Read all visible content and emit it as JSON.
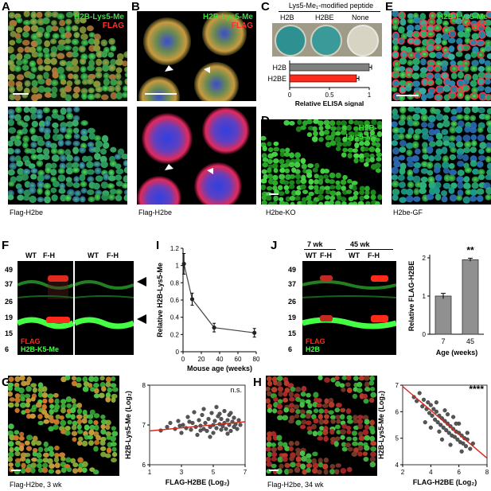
{
  "panels": {
    "A": {
      "label": "A",
      "overlay_green": "H2B-Lys5-Me",
      "overlay_red": "FLAG",
      "caption": "Flag-H2be"
    },
    "B": {
      "label": "B",
      "overlay_green": "H2B-Lys5-Me",
      "overlay_red": "FLAG",
      "caption": "Flag-H2be"
    },
    "C": {
      "label": "C",
      "title": "Lys5-Me₁-modified peptide",
      "wells": [
        "H2B",
        "H2BE",
        "None"
      ],
      "xlabel": "Relative ELISA signal"
    },
    "D": {
      "label": "D",
      "overlay_line1": "H2B-",
      "overlay_line2": "Lys5-Me",
      "caption": "H2be-KO"
    },
    "E": {
      "label": "E",
      "overlay_green": "H2B-Lys5-Me",
      "overlay_red": "FLAG",
      "caption": "H2be-GF"
    },
    "F": {
      "label": "F",
      "lanes": [
        "WT",
        "F-H",
        "WT",
        "F-H"
      ],
      "markers": [
        "49",
        "37",
        "26",
        "19",
        "15",
        "6"
      ],
      "legend_red": "FLAG",
      "legend_green": "H2B-K5-Me"
    },
    "I": {
      "label": "I"
    },
    "J": {
      "label": "J",
      "group1": "7 wk",
      "group2": "45 wk",
      "lanes": [
        "WT",
        "F-H",
        "WT",
        "F-H"
      ],
      "markers": [
        "49",
        "37",
        "26",
        "19",
        "15",
        "6"
      ],
      "legend_red": "FLAG",
      "legend_green": "H2B"
    },
    "G": {
      "label": "G",
      "caption": "Flag-H2be, 3 wk",
      "significance": "n.s."
    },
    "H": {
      "label": "H",
      "caption": "Flag-H2be, 34 wk",
      "significance": "****"
    }
  },
  "chart_data": [
    {
      "id": "C",
      "type": "bar",
      "orientation": "horizontal",
      "categories": [
        "H2B",
        "H2BE"
      ],
      "values": [
        1.0,
        0.84
      ],
      "errors": [
        0.03,
        0.03
      ],
      "colors": [
        "#808080",
        "#ff2a1a"
      ],
      "xlabel": "Relative ELISA signal",
      "xlim": [
        0,
        1
      ],
      "xticks": [
        "0",
        "0.5",
        "1"
      ]
    },
    {
      "id": "I",
      "type": "line",
      "x": [
        1,
        10,
        34,
        78
      ],
      "y": [
        1.02,
        0.61,
        0.28,
        0.22
      ],
      "errors": [
        0.12,
        0.07,
        0.05,
        0.05
      ],
      "xlabel": "Mouse age (weeks)",
      "ylabel": "Relative H2B-Lys5-Me",
      "xlim": [
        0,
        80
      ],
      "ylim": [
        0,
        1.2
      ],
      "xticks": [
        "0",
        "20",
        "40",
        "60",
        "80"
      ],
      "yticks": [
        "0",
        "0.2",
        "0.4",
        "0.6",
        "0.8",
        "1",
        "1.2"
      ]
    },
    {
      "id": "J",
      "type": "bar",
      "categories": [
        "7",
        "45"
      ],
      "values": [
        1.0,
        1.95
      ],
      "errors": [
        0.07,
        0.04
      ],
      "colors": [
        "#909090",
        "#909090"
      ],
      "xlabel": "Age (weeks)",
      "ylabel": "Relative FLAG-H2BE",
      "ylim": [
        0,
        2
      ],
      "yticks": [
        "0",
        "1",
        "2"
      ],
      "significance": "**"
    },
    {
      "id": "G",
      "type": "scatter",
      "xlabel": "FLAG-H2BE (Log₂)",
      "ylabel": "H2B-Lys5-Me (Log₂)",
      "xlim": [
        1,
        7
      ],
      "ylim": [
        6,
        8
      ],
      "xticks": [
        "1",
        "3",
        "5",
        "7"
      ],
      "yticks": [
        "6",
        "7",
        "8"
      ],
      "fit": {
        "x": [
          1,
          7
        ],
        "y": [
          6.85,
          7.08
        ]
      },
      "points": [
        [
          1.7,
          6.86
        ],
        [
          2.1,
          6.95
        ],
        [
          2.3,
          7.05
        ],
        [
          2.6,
          6.9
        ],
        [
          2.8,
          7.1
        ],
        [
          3.0,
          6.8
        ],
        [
          3.1,
          7.0
        ],
        [
          3.3,
          6.92
        ],
        [
          3.4,
          7.2
        ],
        [
          3.6,
          6.88
        ],
        [
          3.7,
          7.05
        ],
        [
          3.9,
          6.95
        ],
        [
          4.0,
          6.75
        ],
        [
          4.1,
          7.12
        ],
        [
          4.2,
          6.98
        ],
        [
          4.3,
          7.25
        ],
        [
          4.4,
          6.9
        ],
        [
          4.5,
          7.05
        ],
        [
          4.6,
          6.85
        ],
        [
          4.7,
          7.15
        ],
        [
          4.8,
          6.95
        ],
        [
          4.9,
          7.3
        ],
        [
          5.0,
          7.0
        ],
        [
          5.0,
          6.8
        ],
        [
          5.1,
          7.1
        ],
        [
          5.2,
          6.92
        ],
        [
          5.3,
          7.22
        ],
        [
          5.4,
          7.02
        ],
        [
          5.5,
          6.88
        ],
        [
          5.5,
          7.15
        ],
        [
          5.6,
          6.97
        ],
        [
          5.7,
          7.35
        ],
        [
          5.7,
          7.05
        ],
        [
          5.8,
          6.9
        ],
        [
          5.9,
          7.12
        ],
        [
          6.0,
          7.0
        ],
        [
          6.0,
          7.25
        ],
        [
          6.1,
          6.85
        ],
        [
          6.2,
          7.08
        ],
        [
          6.3,
          6.95
        ],
        [
          6.3,
          7.18
        ],
        [
          6.4,
          7.02
        ],
        [
          6.5,
          6.9
        ],
        [
          6.6,
          7.12
        ],
        [
          6.7,
          7.0
        ],
        [
          4.4,
          7.4
        ],
        [
          5.2,
          7.45
        ],
        [
          3.8,
          7.32
        ],
        [
          5.9,
          6.78
        ],
        [
          4.8,
          6.7
        ],
        [
          6.1,
          7.3
        ],
        [
          2.9,
          6.98
        ],
        [
          3.5,
          7.08
        ],
        [
          4.2,
          6.86
        ],
        [
          5.4,
          7.28
        ]
      ]
    },
    {
      "id": "H",
      "type": "scatter",
      "xlabel": "FLAG-H2BE (Log₂)",
      "ylabel": "H2B-Lys5-Me (Log₂)",
      "xlim": [
        2,
        8
      ],
      "ylim": [
        4,
        7
      ],
      "xticks": [
        "2",
        "4",
        "6",
        "8"
      ],
      "yticks": [
        "4",
        "5",
        "6",
        "7"
      ],
      "fit": {
        "x": [
          2,
          8
        ],
        "y": [
          6.95,
          4.25
        ]
      },
      "points": [
        [
          2.8,
          6.55
        ],
        [
          3.0,
          6.4
        ],
        [
          3.2,
          6.7
        ],
        [
          3.4,
          6.2
        ],
        [
          3.5,
          6.45
        ],
        [
          3.7,
          6.1
        ],
        [
          3.8,
          6.35
        ],
        [
          3.9,
          5.95
        ],
        [
          4.0,
          6.25
        ],
        [
          4.1,
          5.85
        ],
        [
          4.2,
          6.1
        ],
        [
          4.3,
          5.7
        ],
        [
          4.4,
          6.0
        ],
        [
          4.5,
          5.6
        ],
        [
          4.6,
          5.85
        ],
        [
          4.7,
          5.5
        ],
        [
          4.8,
          5.75
        ],
        [
          4.9,
          5.4
        ],
        [
          5.0,
          5.65
        ],
        [
          5.1,
          5.3
        ],
        [
          5.2,
          5.55
        ],
        [
          5.3,
          5.2
        ],
        [
          5.4,
          5.45
        ],
        [
          5.5,
          5.1
        ],
        [
          5.6,
          5.35
        ],
        [
          5.7,
          5.05
        ],
        [
          5.8,
          5.25
        ],
        [
          5.9,
          4.95
        ],
        [
          6.0,
          5.2
        ],
        [
          6.1,
          4.85
        ],
        [
          6.2,
          5.1
        ],
        [
          6.3,
          4.8
        ],
        [
          6.4,
          5.0
        ],
        [
          6.5,
          4.7
        ],
        [
          6.6,
          4.95
        ],
        [
          6.8,
          4.6
        ],
        [
          7.0,
          4.8
        ],
        [
          4.4,
          6.35
        ],
        [
          5.0,
          6.05
        ],
        [
          5.6,
          5.8
        ],
        [
          6.0,
          5.55
        ],
        [
          4.8,
          4.95
        ],
        [
          5.4,
          4.75
        ],
        [
          6.2,
          4.5
        ],
        [
          3.6,
          5.6
        ],
        [
          4.0,
          5.4
        ],
        [
          5.8,
          5.55
        ],
        [
          6.6,
          5.2
        ],
        [
          5.2,
          5.9
        ],
        [
          4.6,
          5.25
        ]
      ]
    }
  ],
  "colors": {
    "flag_red": "#ff2a1a",
    "k5me_green": "#3cdc3c",
    "dapi_blue": "#2a3cff",
    "bar_gray": "#8c8c8c",
    "fit_red": "#d9241a"
  }
}
